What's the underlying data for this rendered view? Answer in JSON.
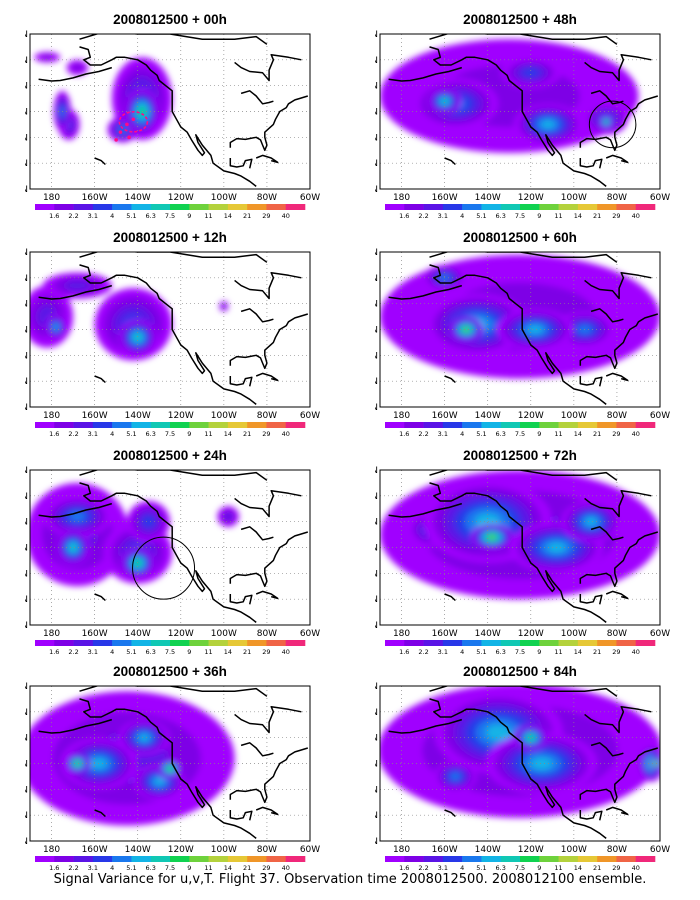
{
  "caption": "Signal Variance for u,v,T. Flight 37. Observation time 2008012500. 2008012100 ensemble.",
  "colorbar": {
    "labels": [
      "1.6",
      "2.2",
      "3.1",
      "4",
      "5.1",
      "6.3",
      "7.5",
      "9",
      "11",
      "14",
      "21",
      "29",
      "40"
    ],
    "colors": [
      "#a000ff",
      "#7e00e6",
      "#5a14e6",
      "#2838e8",
      "#1a78ee",
      "#12b4e6",
      "#10c8b4",
      "#10d250",
      "#6ed23c",
      "#b4d23c",
      "#e6c836",
      "#f09628",
      "#f06446",
      "#f0287a"
    ]
  },
  "axes": {
    "lon_ticks": [
      "180",
      "160W",
      "140W",
      "120W",
      "100W",
      "80W",
      "60W"
    ],
    "lat_ticks": [
      "70N",
      "60N",
      "50N",
      "40N",
      "30N",
      "20N",
      "10N"
    ],
    "lon_range": [
      -190,
      -60
    ],
    "lat_range": [
      10,
      70
    ],
    "grid": true
  },
  "chart_data": [
    {
      "type": "heatmap",
      "title": "2008012500 + 00h",
      "lead_hours": 0,
      "blobs": [
        {
          "lon": -175,
          "lat": 40,
          "w": 4,
          "h": 8,
          "level": 4
        },
        {
          "lon": -172,
          "lat": 35,
          "w": 5,
          "h": 6,
          "level": 3
        },
        {
          "lon": -182,
          "lat": 61,
          "w": 6,
          "h": 2,
          "level": 1
        },
        {
          "lon": -168,
          "lat": 57,
          "w": 5,
          "h": 3,
          "level": 1
        },
        {
          "lon": -138,
          "lat": 45,
          "w": 14,
          "h": 16,
          "level": 3
        },
        {
          "lon": -138,
          "lat": 40,
          "w": 8,
          "h": 9,
          "level": 7
        },
        {
          "lon": -147,
          "lat": 33,
          "w": 7,
          "h": 5,
          "level": 4
        }
      ],
      "obs": [
        [
          -145,
          35
        ],
        [
          -148,
          32
        ],
        [
          -144,
          30
        ],
        [
          -150,
          29
        ],
        [
          -142,
          37
        ]
      ],
      "circles": []
    },
    {
      "type": "heatmap",
      "title": "2008012500 + 12h",
      "lead_hours": 12,
      "blobs": [
        {
          "lon": -182,
          "lat": 45,
          "w": 12,
          "h": 12,
          "level": 2
        },
        {
          "lon": -168,
          "lat": 57,
          "w": 16,
          "h": 5,
          "level": 2
        },
        {
          "lon": -142,
          "lat": 42,
          "w": 18,
          "h": 14,
          "level": 3
        },
        {
          "lon": -140,
          "lat": 37,
          "w": 9,
          "h": 7,
          "level": 6
        },
        {
          "lon": -178,
          "lat": 41,
          "w": 5,
          "h": 5,
          "level": 5
        },
        {
          "lon": -100,
          "lat": 49,
          "w": 2,
          "h": 2,
          "level": 2
        }
      ],
      "obs": [],
      "circles": []
    },
    {
      "type": "heatmap",
      "title": "2008012500 + 24h",
      "lead_hours": 24,
      "blobs": [
        {
          "lon": -168,
          "lat": 45,
          "w": 24,
          "h": 20,
          "level": 2
        },
        {
          "lon": -168,
          "lat": 52,
          "w": 16,
          "h": 8,
          "level": 4
        },
        {
          "lon": -170,
          "lat": 40,
          "w": 8,
          "h": 7,
          "level": 6
        },
        {
          "lon": -140,
          "lat": 38,
          "w": 16,
          "h": 12,
          "level": 3
        },
        {
          "lon": -140,
          "lat": 34,
          "w": 8,
          "h": 6,
          "level": 7
        },
        {
          "lon": -135,
          "lat": 50,
          "w": 10,
          "h": 8,
          "level": 3
        },
        {
          "lon": -98,
          "lat": 52,
          "w": 5,
          "h": 4,
          "level": 2
        }
      ],
      "obs": [],
      "circles": [
        {
          "lon": -128,
          "lat": 32,
          "r_deg": 8
        }
      ]
    },
    {
      "type": "heatmap",
      "title": "2008012500 + 36h",
      "lead_hours": 36,
      "blobs": [
        {
          "lon": -145,
          "lat": 42,
          "w": 50,
          "h": 26,
          "level": 2
        },
        {
          "lon": -158,
          "lat": 40,
          "w": 18,
          "h": 10,
          "level": 5
        },
        {
          "lon": -168,
          "lat": 40,
          "w": 6,
          "h": 4,
          "level": 8
        },
        {
          "lon": -137,
          "lat": 50,
          "w": 12,
          "h": 7,
          "level": 5
        },
        {
          "lon": -130,
          "lat": 33,
          "w": 12,
          "h": 7,
          "level": 5
        },
        {
          "lon": -125,
          "lat": 38,
          "w": 6,
          "h": 4,
          "level": 8
        }
      ],
      "obs": [],
      "circles": []
    },
    {
      "type": "heatmap",
      "title": "2008012500 + 48h",
      "lead_hours": 48,
      "blobs": [
        {
          "lon": -130,
          "lat": 46,
          "w": 60,
          "h": 22,
          "level": 1
        },
        {
          "lon": -155,
          "lat": 43,
          "w": 20,
          "h": 10,
          "level": 4
        },
        {
          "lon": -160,
          "lat": 44,
          "w": 8,
          "h": 5,
          "level": 6
        },
        {
          "lon": -112,
          "lat": 35,
          "w": 16,
          "h": 8,
          "level": 5
        },
        {
          "lon": -85,
          "lat": 37,
          "w": 10,
          "h": 6,
          "level": 4
        },
        {
          "lon": -85,
          "lat": 36,
          "w": 4,
          "h": 3,
          "level": 7
        },
        {
          "lon": -120,
          "lat": 55,
          "w": 14,
          "h": 6,
          "level": 3
        }
      ],
      "obs": [],
      "circles": [
        {
          "lon": -82,
          "lat": 35,
          "r_deg": 6
        }
      ]
    },
    {
      "type": "heatmap",
      "title": "2008012500 + 60h",
      "lead_hours": 60,
      "blobs": [
        {
          "lon": -125,
          "lat": 45,
          "w": 65,
          "h": 24,
          "level": 1
        },
        {
          "lon": -145,
          "lat": 42,
          "w": 24,
          "h": 12,
          "level": 5
        },
        {
          "lon": -150,
          "lat": 40,
          "w": 8,
          "h": 5,
          "level": 8
        },
        {
          "lon": -118,
          "lat": 40,
          "w": 18,
          "h": 8,
          "level": 5
        },
        {
          "lon": -95,
          "lat": 40,
          "w": 14,
          "h": 7,
          "level": 4
        },
        {
          "lon": -160,
          "lat": 60,
          "w": 10,
          "h": 5,
          "level": 4
        }
      ],
      "obs": [],
      "circles": []
    },
    {
      "type": "heatmap",
      "title": "2008012500 + 72h",
      "lead_hours": 72,
      "blobs": [
        {
          "lon": -125,
          "lat": 45,
          "w": 65,
          "h": 25,
          "level": 2
        },
        {
          "lon": -140,
          "lat": 50,
          "w": 30,
          "h": 16,
          "level": 5
        },
        {
          "lon": -138,
          "lat": 44,
          "w": 10,
          "h": 5,
          "level": 8
        },
        {
          "lon": -108,
          "lat": 40,
          "w": 22,
          "h": 10,
          "level": 5
        },
        {
          "lon": -92,
          "lat": 50,
          "w": 14,
          "h": 8,
          "level": 5
        },
        {
          "lon": -165,
          "lat": 47,
          "w": 12,
          "h": 7,
          "level": 4
        }
      ],
      "obs": [],
      "circles": []
    },
    {
      "type": "heatmap",
      "title": "2008012500 + 84h",
      "lead_hours": 84,
      "blobs": [
        {
          "lon": -125,
          "lat": 45,
          "w": 66,
          "h": 26,
          "level": 2
        },
        {
          "lon": -135,
          "lat": 52,
          "w": 30,
          "h": 16,
          "level": 5
        },
        {
          "lon": -115,
          "lat": 40,
          "w": 26,
          "h": 12,
          "level": 5
        },
        {
          "lon": -120,
          "lat": 50,
          "w": 8,
          "h": 5,
          "level": 7
        },
        {
          "lon": -64,
          "lat": 40,
          "w": 6,
          "h": 7,
          "level": 7
        },
        {
          "lon": -62,
          "lat": 40,
          "w": 3,
          "h": 3,
          "level": 9
        },
        {
          "lon": -155,
          "lat": 35,
          "w": 10,
          "h": 6,
          "level": 4
        }
      ],
      "obs": [],
      "circles": []
    }
  ]
}
